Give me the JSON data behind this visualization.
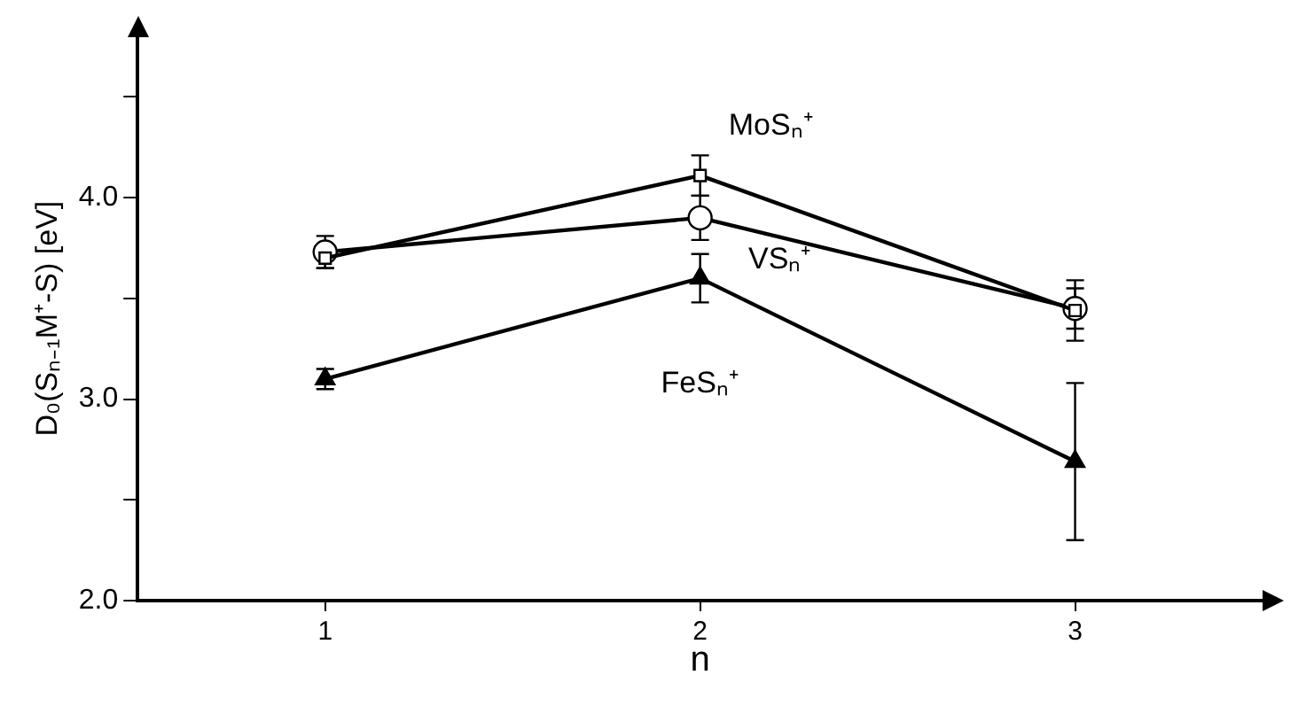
{
  "chart_data": {
    "type": "line",
    "xlabel": "n",
    "ylabel": "D₀(Sₙ₋₁M⁺-S) [eV]",
    "categories": [
      "1",
      "2",
      "3"
    ],
    "series": [
      {
        "name": "MoSₙ⁺",
        "color": "#000000",
        "marker": "square",
        "values": [
          3.7,
          4.11,
          3.44
        ],
        "errors": [
          0.05,
          0.1,
          0.15
        ]
      },
      {
        "name": "VSₙ⁺",
        "color": "#000000",
        "marker": "circle",
        "values": [
          3.73,
          3.9,
          3.45
        ],
        "errors": [
          0.08,
          0.11,
          0.1
        ]
      },
      {
        "name": "FeSₙ⁺",
        "color": "#000000",
        "marker": "triangle",
        "values": [
          3.1,
          3.6,
          2.69
        ],
        "errors": [
          0.05,
          0.12,
          0.39
        ]
      }
    ],
    "ylim": [
      2.0,
      4.8
    ],
    "yticks": [
      {
        "value": 2.0,
        "label": "2.0"
      },
      {
        "value": 2.5,
        "label": null
      },
      {
        "value": 3.0,
        "label": "3.0"
      },
      {
        "value": 3.5,
        "label": null
      },
      {
        "value": 4.0,
        "label": "4.0"
      },
      {
        "value": 4.5,
        "label": null
      }
    ],
    "grid": false,
    "legend": false,
    "line_style": "solid"
  }
}
